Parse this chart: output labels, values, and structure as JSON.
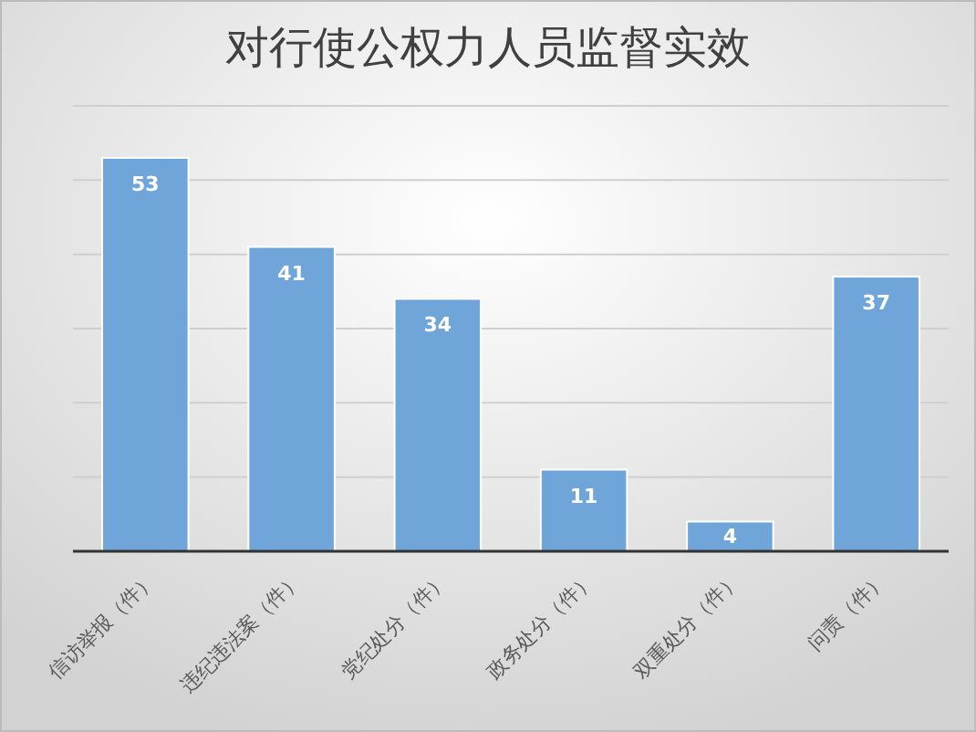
{
  "chart_data": {
    "type": "bar",
    "title": "对行使公权力人员监督实效",
    "categories": [
      "信访举报（件）",
      "违纪违法案（件）",
      "党纪处分（件）",
      "政务处分（件）",
      "双重处分（件）",
      "问责（件）"
    ],
    "values": [
      53,
      41,
      34,
      11,
      4,
      37
    ],
    "color": "#6fa5d8",
    "ylim": [
      0,
      60
    ],
    "yticks": [
      {
        "value": 0,
        "label": null
      },
      {
        "value": 10,
        "label": null
      },
      {
        "value": 20,
        "label": null
      },
      {
        "value": 30,
        "label": null
      },
      {
        "value": 40,
        "label": null
      },
      {
        "value": 50,
        "label": null
      },
      {
        "value": 60,
        "label": null
      }
    ],
    "grid": "y",
    "tick_labels": "x",
    "data_labels": true
  }
}
